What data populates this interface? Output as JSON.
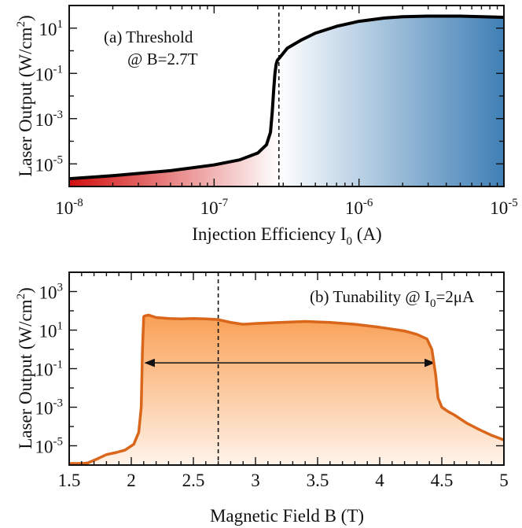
{
  "chart_data": [
    {
      "type": "line",
      "panel": "a",
      "annotation": {
        "line1": "(a) Threshold",
        "line2": "@ B=2.7T"
      },
      "xlabel": {
        "main": "Injection Efficiency I",
        "sub": "0",
        "unit": " (A)"
      },
      "ylabel": {
        "main": "Laser Output (W/cm",
        "sup": "2",
        "end": ")"
      },
      "xscale": "log",
      "yscale": "log",
      "xlim": [
        1e-08,
        1e-05
      ],
      "ylim": [
        1e-06,
        100
      ],
      "x_ticks": [
        {
          "value": 1e-08,
          "base": "10",
          "exp": "-8"
        },
        {
          "value": 1e-07,
          "base": "10",
          "exp": "-7"
        },
        {
          "value": 1e-06,
          "base": "10",
          "exp": "-6"
        },
        {
          "value": 1e-05,
          "base": "10",
          "exp": "-5"
        }
      ],
      "y_ticks": [
        {
          "value": 1e-05,
          "base": "10",
          "exp": "-5"
        },
        {
          "value": 0.001,
          "base": "10",
          "exp": "-3"
        },
        {
          "value": 0.1,
          "base": "10",
          "exp": "-1"
        },
        {
          "value": 10,
          "base": "10",
          "exp": "1"
        }
      ],
      "threshold_x": 2.8e-07,
      "line_color": "#000000",
      "gradient_colors": {
        "low": "#d20f0f",
        "mid": "#ffffff",
        "high": "#3f7fb5"
      },
      "series": [
        {
          "x": [
            1e-08,
            2e-08,
            5e-08,
            1e-07,
            1.5e-07,
            2e-07,
            2.3e-07,
            2.45e-07,
            2.52e-07,
            2.58e-07,
            2.63e-07,
            2.68e-07,
            2.72e-07,
            2.75e-07,
            2.8e-07,
            3.2e-07,
            4e-07,
            5e-07,
            7e-07,
            1e-06,
            1.5e-06,
            2e-06,
            3e-06,
            5e-06,
            1e-05
          ],
          "y": [
            2.2e-06,
            3e-06,
            5e-06,
            9e-06,
            1.5e-05,
            3e-05,
            7e-05,
            0.00025,
            0.002,
            0.02,
            0.1,
            0.25,
            0.35,
            0.4,
            0.45,
            1.3,
            3,
            6,
            12,
            20,
            28,
            32,
            34,
            34,
            30
          ]
        }
      ]
    },
    {
      "type": "area",
      "panel": "b",
      "annotation": {
        "main": "(b) Tunability @ I",
        "sub": "0",
        "end": "=2μA"
      },
      "xlabel": "Magnetic Field B (T)",
      "ylabel": {
        "main": "Laser Output (W/cm",
        "sup": "2",
        "end": ")"
      },
      "yscale": "log",
      "xlim": [
        1.5,
        5
      ],
      "ylim": [
        1e-06,
        10000
      ],
      "x_ticks": [
        "1.5",
        "2",
        "2.5",
        "3",
        "3.5",
        "4",
        "4.5",
        "5"
      ],
      "y_ticks": [
        {
          "value": 1e-05,
          "base": "10",
          "exp": "-5"
        },
        {
          "value": 0.001,
          "base": "10",
          "exp": "-3"
        },
        {
          "value": 0.1,
          "base": "10",
          "exp": "-1"
        },
        {
          "value": 10,
          "base": "10",
          "exp": "1"
        },
        {
          "value": 1000,
          "base": "10",
          "exp": "3"
        }
      ],
      "dashed_x": 2.7,
      "arrow_range": [
        2.1,
        4.45
      ],
      "arrow_y": 0.2,
      "line_color": "#d9661a",
      "fill_top": "#f9a055",
      "fill_bottom": "#fff3ea",
      "series": [
        {
          "x": [
            1.5,
            1.6,
            1.65,
            1.72,
            1.8,
            1.88,
            1.95,
            2.02,
            2.06,
            2.08,
            2.09,
            2.1,
            2.11,
            2.14,
            2.2,
            2.3,
            2.4,
            2.5,
            2.6,
            2.7,
            2.8,
            2.9,
            3.0,
            3.2,
            3.4,
            3.6,
            3.8,
            4.0,
            4.2,
            4.3,
            4.38,
            4.42,
            4.45,
            4.47,
            4.5,
            4.55,
            4.6,
            4.7,
            4.8,
            4.9,
            5.0
          ],
          "y": [
            1.2e-06,
            1.2e-06,
            1.3e-06,
            2e-06,
            3.5e-06,
            4.5e-06,
            6e-06,
            1.2e-05,
            5e-05,
            0.001,
            1,
            50,
            55,
            60,
            45,
            40,
            38,
            40,
            38,
            35,
            25,
            20,
            22,
            25,
            28,
            25,
            20,
            14,
            9,
            6,
            3.5,
            1,
            0.05,
            0.003,
            0.001,
            0.0006,
            0.0004,
            0.00015,
            7e-05,
            3.5e-05,
            2e-05
          ]
        }
      ]
    }
  ]
}
